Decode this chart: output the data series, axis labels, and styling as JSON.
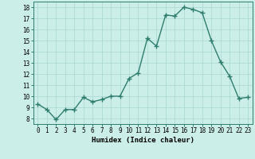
{
  "x": [
    0,
    1,
    2,
    3,
    4,
    5,
    6,
    7,
    8,
    9,
    10,
    11,
    12,
    13,
    14,
    15,
    16,
    17,
    18,
    19,
    20,
    21,
    22,
    23
  ],
  "y": [
    9.3,
    8.8,
    7.9,
    8.8,
    8.8,
    9.9,
    9.5,
    9.7,
    10.0,
    10.0,
    11.6,
    12.1,
    15.2,
    14.5,
    17.3,
    17.2,
    18.0,
    17.8,
    17.5,
    15.0,
    13.1,
    11.8,
    9.8,
    9.9
  ],
  "xlim": [
    -0.5,
    23.5
  ],
  "ylim": [
    7.5,
    18.5
  ],
  "yticks": [
    8,
    9,
    10,
    11,
    12,
    13,
    14,
    15,
    16,
    17,
    18
  ],
  "xticks": [
    0,
    1,
    2,
    3,
    4,
    5,
    6,
    7,
    8,
    9,
    10,
    11,
    12,
    13,
    14,
    15,
    16,
    17,
    18,
    19,
    20,
    21,
    22,
    23
  ],
  "xlabel": "Humidex (Indice chaleur)",
  "line_color": "#2e7d6e",
  "bg_color": "#cceee8",
  "grid_color": "#a8d8d0",
  "marker": "+",
  "linewidth": 1.0,
  "markersize": 4,
  "markeredgewidth": 1.0,
  "label_fontsize": 6.5,
  "tick_fontsize": 5.5
}
